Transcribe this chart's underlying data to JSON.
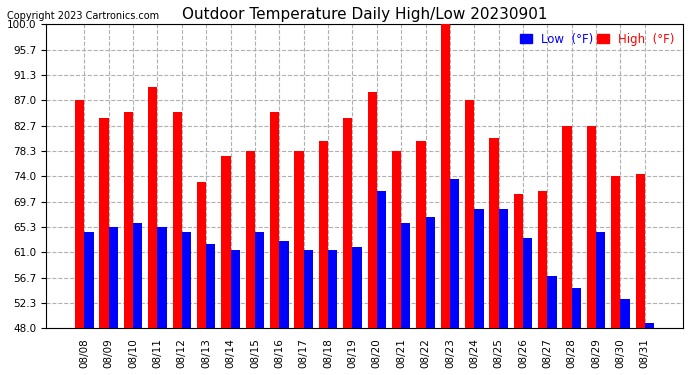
{
  "title": "Outdoor Temperature Daily High/Low 20230901",
  "copyright": "Copyright 2023 Cartronics.com",
  "legend_low_label": "Low  (°F)",
  "legend_high_label": "High  (°F)",
  "dates": [
    "08/08",
    "08/09",
    "08/10",
    "08/11",
    "08/12",
    "08/13",
    "08/14",
    "08/15",
    "08/16",
    "08/17",
    "08/18",
    "08/19",
    "08/20",
    "08/21",
    "08/22",
    "08/23",
    "08/24",
    "08/25",
    "08/26",
    "08/27",
    "08/28",
    "08/29",
    "08/30",
    "08/31"
  ],
  "highs": [
    87.0,
    84.0,
    85.0,
    89.3,
    85.0,
    73.0,
    77.5,
    78.3,
    85.0,
    78.3,
    80.0,
    84.0,
    88.5,
    78.3,
    80.0,
    100.0,
    87.0,
    80.5,
    71.0,
    71.5,
    82.7,
    82.7,
    74.0,
    74.5
  ],
  "lows": [
    64.5,
    65.3,
    66.0,
    65.3,
    64.5,
    62.5,
    61.5,
    64.5,
    63.0,
    61.5,
    61.5,
    62.0,
    71.5,
    66.0,
    67.0,
    73.5,
    68.5,
    68.5,
    63.5,
    57.0,
    55.0,
    64.5,
    53.0,
    49.0
  ],
  "high_color": "#ff0000",
  "low_color": "#0000ff",
  "bg_color": "#ffffff",
  "grid_color": "#b0b0b0",
  "baseline": 48.0,
  "ylim_min": 48.0,
  "ylim_max": 100.0,
  "yticks": [
    48.0,
    52.3,
    56.7,
    61.0,
    65.3,
    69.7,
    74.0,
    78.3,
    82.7,
    87.0,
    91.3,
    95.7,
    100.0
  ],
  "title_fontsize": 11,
  "copyright_fontsize": 7,
  "tick_fontsize": 7.5,
  "legend_fontsize": 8.5,
  "bar_width": 0.38
}
